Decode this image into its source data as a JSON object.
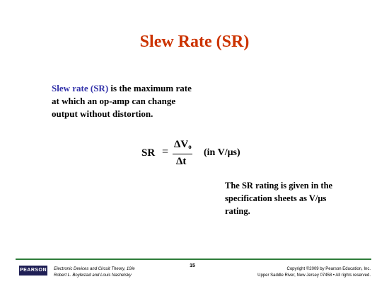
{
  "slide": {
    "title": "Slew Rate (SR)",
    "intro_term": "Slew rate (SR)",
    "intro_rest": " is the maximum rate at which an op-amp can change output without distortion.",
    "formula": {
      "lhs": "SR",
      "equals": "=",
      "numerator": "ΔV",
      "numerator_sub": "o",
      "denominator": "Δt",
      "unit_note": "(in V/μs)"
    },
    "note": "The SR rating is given in the specification sheets as V/μs rating."
  },
  "footer": {
    "logo": "PEARSON",
    "book_line1": "Electronic Devices and Circuit Theory, 10/e",
    "book_line2": "Robert L. Boylestad and Louis Nashelsky",
    "page_number": "15",
    "copyright_line1": "Copyright ©2009 by Pearson Education, Inc.",
    "copyright_line2": "Upper Saddle River, New Jersey 07458 • All rights reserved."
  },
  "colors": {
    "title": "#cc3300",
    "term": "#3333aa",
    "rule": "#2e7d3a",
    "logo_bg": "#1f1f55"
  }
}
